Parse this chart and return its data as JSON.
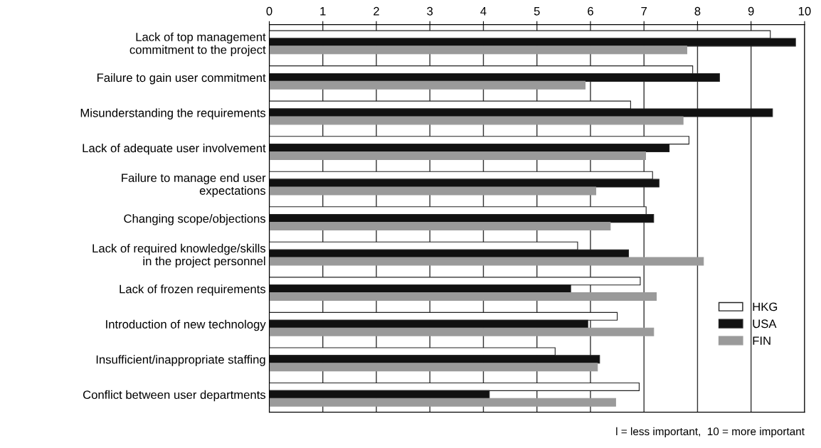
{
  "chart_data": {
    "type": "bar",
    "orientation": "horizontal",
    "categories": [
      "Lack of top management\ncommitment to the project",
      "Failure to gain user commitment",
      "Misunderstanding the requirements",
      "Lack of adequate user involvement",
      "Failure to manage end user\nexpectations",
      "Changing scope/objections",
      "Lack of required knowledge/skills\nin the project personnel",
      "Lack of frozen requirements",
      "Introduction of new technology",
      "Insufficient/inappropriate staffing",
      "Conflict between user departments"
    ],
    "series": [
      {
        "name": "HKG",
        "color": "#ffffff",
        "values": [
          9.36,
          7.91,
          6.75,
          7.84,
          7.16,
          7.04,
          5.76,
          6.93,
          6.5,
          5.34,
          6.91
        ]
      },
      {
        "name": "USA",
        "color": "#111111",
        "values": [
          9.83,
          8.41,
          9.4,
          7.47,
          7.28,
          7.18,
          6.71,
          5.63,
          5.95,
          6.17,
          4.11
        ]
      },
      {
        "name": "FIN",
        "color": "#9a9a9a",
        "values": [
          7.8,
          5.9,
          7.73,
          7.03,
          6.1,
          6.37,
          8.11,
          7.23,
          7.18,
          6.13,
          6.47
        ]
      }
    ],
    "xlim": [
      0,
      10
    ],
    "xticks": [
      0,
      1,
      2,
      3,
      4,
      5,
      6,
      7,
      8,
      9,
      10
    ],
    "grid": "x",
    "legend": "bottom right",
    "annotations": [
      "l = less important,  10 = more important"
    ]
  }
}
